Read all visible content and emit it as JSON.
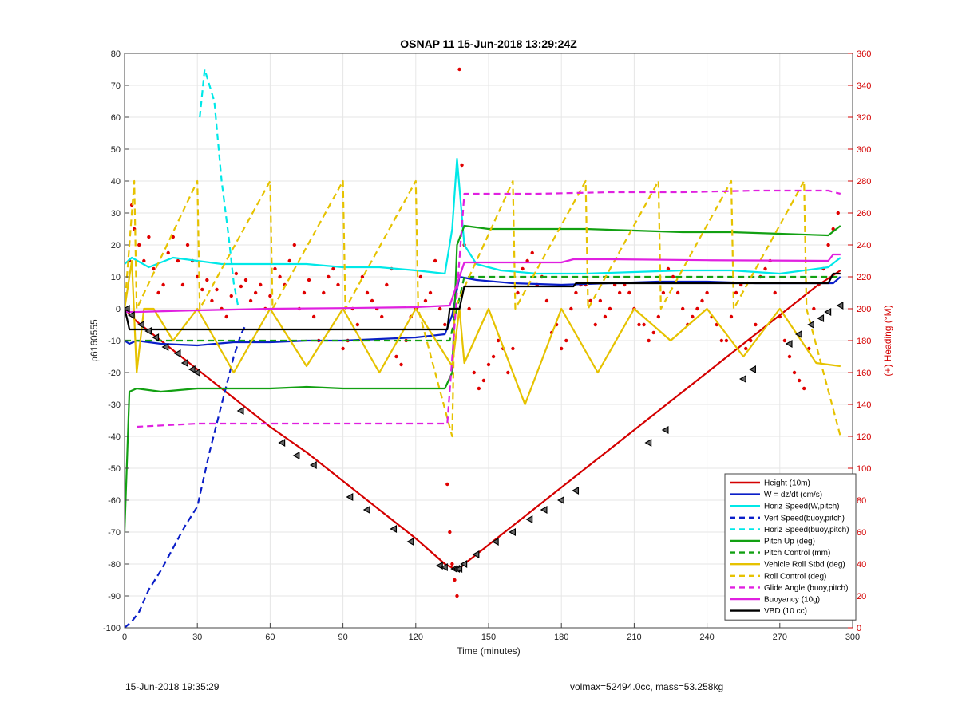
{
  "footer": {
    "left": "15-Jun-2018 19:35:29",
    "right": "volmax=52494.0cc, mass=53.258kg"
  },
  "chart_data": {
    "type": "line",
    "title": "OSNAP 11 15-Jun-2018 13:29:24Z",
    "xlabel": "Time (minutes)",
    "ylabel": "p6160555",
    "y2label": "(+) Heading (°M)",
    "xlim": [
      0,
      300
    ],
    "ylim": [
      -100,
      80
    ],
    "y2lim": [
      0,
      360
    ],
    "xticks": [
      0,
      30,
      60,
      90,
      120,
      150,
      180,
      210,
      240,
      270,
      300
    ],
    "yticks": [
      -100,
      -90,
      -80,
      -70,
      -60,
      -50,
      -40,
      -30,
      -20,
      -10,
      0,
      10,
      20,
      30,
      40,
      50,
      60,
      70,
      80
    ],
    "y2ticks": [
      0,
      20,
      40,
      60,
      80,
      100,
      120,
      140,
      160,
      180,
      200,
      220,
      240,
      260,
      280,
      300,
      320,
      340,
      360
    ],
    "grid": true,
    "legend_position": "bottom-right",
    "colors": {
      "height": "#d40000",
      "w": "#0a1ec8",
      "horiz_speed": "#00e8e8",
      "pitch": "#12a012",
      "roll": "#e6c200",
      "glide": "#e020e0",
      "buoyancy": "#e020e0",
      "vbd": "#000000",
      "heading": "#e00000"
    },
    "series": [
      {
        "name": "Height (10m)",
        "color": "#d40000",
        "dash": "solid",
        "x": [
          0,
          5,
          15,
          30,
          45,
          60,
          75,
          90,
          105,
          120,
          132,
          136,
          138,
          140,
          150,
          165,
          180,
          195,
          210,
          225,
          240,
          255,
          270,
          285,
          295
        ],
        "y": [
          0,
          -4,
          -10,
          -19,
          -28,
          -37,
          -45,
          -54,
          -63,
          -72,
          -80,
          -81.5,
          -81.5,
          -80,
          -74,
          -65,
          -56,
          -47,
          -38,
          -29,
          -20,
          -11,
          -2,
          7,
          12
        ]
      },
      {
        "name": "W = dz/dt (cm/s)",
        "color": "#0a1ec8",
        "dash": "solid",
        "x": [
          0,
          2,
          5,
          15,
          30,
          45,
          60,
          75,
          90,
          105,
          120,
          132,
          135,
          138,
          145,
          160,
          180,
          200,
          220,
          240,
          260,
          280,
          292,
          295
        ],
        "y": [
          -10,
          -11,
          -10,
          -11,
          -11.5,
          -10.5,
          -10.5,
          -10,
          -10,
          -9.5,
          -9,
          -8,
          -2,
          10,
          9,
          8,
          7.5,
          8,
          8.5,
          8.5,
          8,
          8,
          8,
          10
        ]
      },
      {
        "name": "Horiz Speed(W,pitch)",
        "color": "#00e8e8",
        "dash": "solid",
        "x": [
          0,
          3,
          10,
          20,
          30,
          40,
          50,
          60,
          75,
          90,
          105,
          120,
          132,
          135,
          137,
          140,
          145,
          155,
          170,
          190,
          210,
          230,
          250,
          270,
          290,
          295
        ],
        "y": [
          14,
          16,
          13,
          16,
          15,
          14,
          14,
          14,
          14,
          13,
          13,
          12,
          11,
          25,
          47,
          20,
          14,
          12,
          11,
          11,
          11.5,
          12,
          12,
          11,
          13,
          16
        ]
      },
      {
        "name": "Vert Speed(buoy,pitch)",
        "color": "#0a1ec8",
        "dash": "dashed",
        "x": [
          0,
          3,
          6,
          10,
          15,
          20,
          25,
          30,
          35,
          40,
          45,
          48,
          50
        ],
        "y": [
          -100,
          -98,
          -95,
          -88,
          -82,
          -75,
          -68,
          -62,
          -45,
          -30,
          -15,
          -8,
          -5
        ]
      },
      {
        "name": "Horiz Speed(buoy,pitch)",
        "color": "#00e8e8",
        "dash": "dashed",
        "x": [
          31,
          33,
          35,
          37,
          40,
          43,
          45,
          47
        ],
        "y": [
          60,
          75,
          70,
          65,
          40,
          22,
          8,
          0
        ]
      },
      {
        "name": "Pitch Up (deg)",
        "color": "#12a012",
        "dash": "solid",
        "x": [
          0,
          2,
          5,
          15,
          30,
          45,
          60,
          75,
          90,
          105,
          120,
          132,
          135,
          137,
          140,
          150,
          170,
          190,
          210,
          230,
          250,
          270,
          290,
          295
        ],
        "y": [
          -70,
          -26,
          -25,
          -26,
          -25,
          -25,
          -25,
          -24.5,
          -25,
          -25,
          -25,
          -25,
          -20,
          20,
          26,
          25,
          25,
          25,
          24.5,
          24,
          24,
          23.5,
          23,
          26
        ]
      },
      {
        "name": "Pitch Control (mm)",
        "color": "#12a012",
        "dash": "dashed",
        "x": [
          0,
          30,
          60,
          90,
          120,
          134,
          140,
          160,
          200,
          240,
          280,
          295
        ],
        "y": [
          -10,
          -10,
          -10,
          -10,
          -10,
          -10,
          10,
          10,
          10,
          10,
          10,
          10
        ]
      },
      {
        "name": "Vehicle Roll Stbd (deg)",
        "color": "#e6c200",
        "dash": "solid",
        "x": [
          0,
          3,
          5,
          8,
          12,
          20,
          30,
          45,
          60,
          75,
          90,
          105,
          120,
          135,
          138,
          140,
          150,
          165,
          180,
          195,
          210,
          225,
          240,
          255,
          270,
          285,
          295
        ],
        "y": [
          0,
          15,
          -20,
          0,
          0,
          -10,
          0,
          -20,
          0,
          -18,
          0,
          -20,
          0,
          -18,
          0,
          -17,
          0,
          -30,
          0,
          -20,
          0,
          -10,
          0,
          -15,
          0,
          -17,
          -18
        ]
      },
      {
        "name": "Roll Control (deg)",
        "color": "#e6c200",
        "dash": "dashed",
        "x": [
          0,
          4,
          5,
          30,
          31,
          60,
          61,
          90,
          91,
          120,
          121,
          135,
          136,
          160,
          161,
          190,
          191,
          220,
          221,
          250,
          251,
          280,
          281,
          295
        ],
        "y": [
          0,
          40,
          0,
          40,
          0,
          40,
          0,
          40,
          0,
          40,
          0,
          -40,
          0,
          40,
          0,
          40,
          0,
          40,
          0,
          40,
          0,
          40,
          0,
          -40
        ]
      },
      {
        "name": "Glide Angle (buoy,pitch)",
        "color": "#e020e0",
        "dash": "dashed",
        "x": [
          5,
          30,
          60,
          90,
          120,
          133,
          140,
          170,
          200,
          230,
          260,
          290,
          295
        ],
        "y": [
          -37,
          -36,
          -36,
          -36,
          -36,
          -36,
          36,
          36,
          36.5,
          36.5,
          37,
          37,
          36
        ]
      },
      {
        "name": "Buoyancy (10g)",
        "color": "#e020e0",
        "dash": "solid",
        "x": [
          0,
          5,
          30,
          60,
          90,
          120,
          134,
          140,
          150,
          180,
          185,
          200,
          240,
          290,
          292,
          295
        ],
        "y": [
          -1,
          -1,
          -0.5,
          0,
          0.2,
          0.5,
          1,
          14.5,
          14.5,
          14.5,
          15.5,
          15.5,
          15.2,
          15,
          17,
          17
        ]
      },
      {
        "name": "VBD (10 cc)",
        "color": "#000000",
        "dash": "solid",
        "x": [
          0,
          1,
          2,
          133,
          134,
          138,
          140,
          185,
          186,
          290,
          292,
          295
        ],
        "y": [
          0,
          -3,
          -6.5,
          -6.5,
          0,
          0,
          7,
          7,
          8,
          8,
          11,
          11
        ]
      }
    ],
    "heading_points": {
      "name": "(+) Heading (°M)",
      "axis": "right",
      "x": [
        2,
        3,
        4,
        6,
        8,
        10,
        12,
        14,
        16,
        18,
        20,
        22,
        24,
        26,
        28,
        30,
        32,
        34,
        36,
        38,
        40,
        42,
        44,
        46,
        48,
        50,
        52,
        54,
        56,
        58,
        60,
        62,
        64,
        66,
        68,
        70,
        72,
        74,
        76,
        78,
        80,
        82,
        84,
        86,
        88,
        90,
        92,
        94,
        96,
        98,
        100,
        102,
        104,
        106,
        108,
        110,
        112,
        114,
        116,
        118,
        120,
        122,
        124,
        126,
        128,
        130,
        132,
        133,
        134,
        135,
        136,
        137,
        138,
        139,
        140,
        142,
        144,
        146,
        148,
        150,
        152,
        154,
        156,
        158,
        160,
        162,
        164,
        166,
        168,
        170,
        172,
        174,
        176,
        178,
        180,
        182,
        184,
        186,
        188,
        190,
        192,
        194,
        196,
        198,
        200,
        202,
        204,
        206,
        208,
        210,
        212,
        214,
        216,
        218,
        220,
        222,
        224,
        226,
        228,
        230,
        232,
        234,
        236,
        238,
        240,
        242,
        244,
        246,
        248,
        250,
        252,
        254,
        256,
        258,
        260,
        262,
        264,
        266,
        268,
        270,
        272,
        274,
        276,
        278,
        280,
        282,
        284,
        286,
        288,
        290,
        292,
        294
      ],
      "y": [
        230,
        265,
        250,
        240,
        230,
        245,
        225,
        210,
        215,
        235,
        245,
        230,
        215,
        240,
        230,
        220,
        212,
        218,
        205,
        212,
        200,
        195,
        208,
        222,
        214,
        218,
        205,
        210,
        215,
        200,
        208,
        225,
        220,
        215,
        230,
        240,
        200,
        210,
        218,
        195,
        180,
        210,
        220,
        225,
        215,
        175,
        180,
        200,
        190,
        220,
        210,
        205,
        200,
        195,
        215,
        225,
        170,
        165,
        180,
        195,
        200,
        220,
        205,
        210,
        230,
        200,
        190,
        90,
        60,
        40,
        30,
        20,
        350,
        290,
        240,
        200,
        160,
        150,
        155,
        165,
        170,
        180,
        175,
        160,
        175,
        210,
        225,
        230,
        235,
        215,
        220,
        205,
        185,
        190,
        175,
        180,
        200,
        210,
        215,
        215,
        205,
        190,
        205,
        195,
        200,
        215,
        210,
        215,
        210,
        200,
        190,
        190,
        180,
        185,
        195,
        210,
        225,
        220,
        210,
        200,
        190,
        195,
        200,
        205,
        210,
        195,
        190,
        180,
        180,
        195,
        210,
        215,
        175,
        180,
        190,
        220,
        225,
        230,
        210,
        195,
        180,
        170,
        160,
        155,
        150,
        175,
        200,
        215,
        225,
        240,
        250,
        260
      ]
    },
    "markers": {
      "name": "Height markers",
      "x": [
        1,
        3,
        7,
        10,
        13,
        17,
        22,
        25,
        28,
        30,
        48,
        65,
        71,
        78,
        93,
        100,
        111,
        118,
        130,
        132,
        136,
        137,
        138,
        140,
        145,
        153,
        160,
        167,
        173,
        180,
        186,
        216,
        223,
        255,
        259,
        274,
        278,
        283,
        287,
        290,
        295
      ],
      "y": [
        0,
        -2,
        -5,
        -7,
        -9,
        -12,
        -14,
        -17,
        -19,
        -20,
        -32,
        -42,
        -46,
        -49,
        -59,
        -63,
        -69,
        -73,
        -80.5,
        -81,
        -81.5,
        -81.5,
        -81.5,
        -80,
        -77,
        -73,
        -70,
        -66,
        -63,
        -60,
        -57,
        -42,
        -38,
        -22,
        -19,
        -11,
        -8,
        -5,
        -3,
        -1,
        1
      ]
    }
  }
}
